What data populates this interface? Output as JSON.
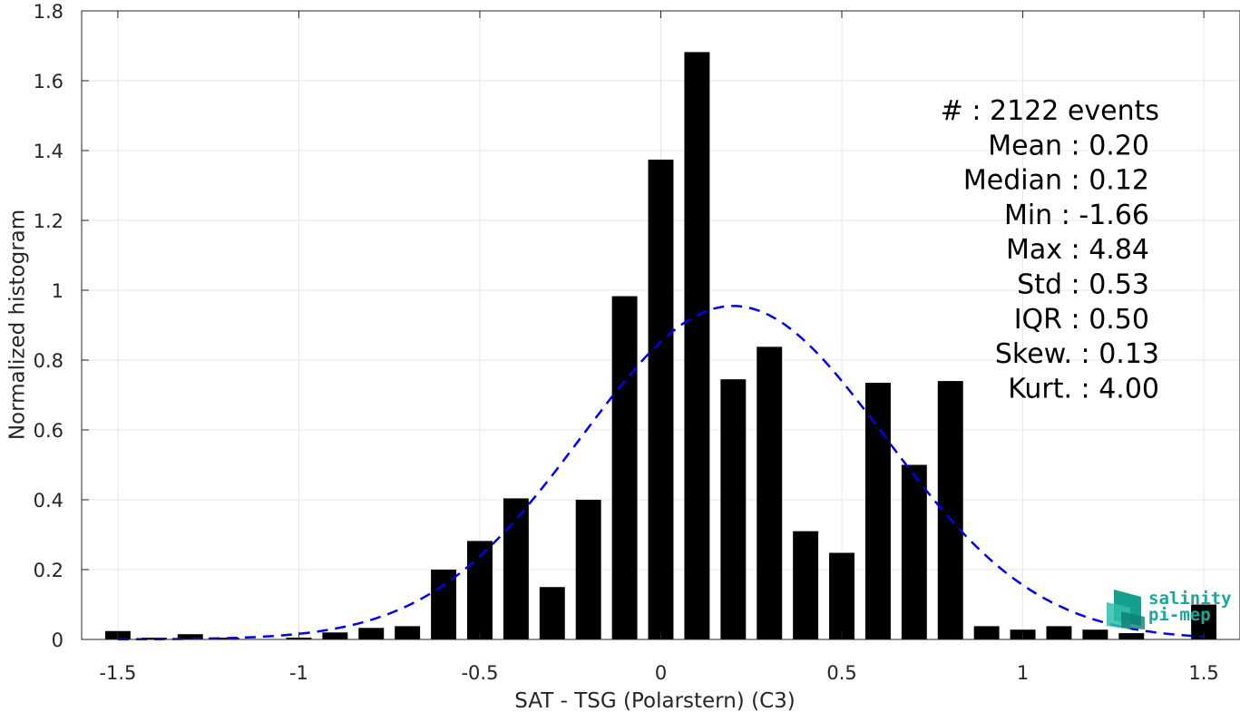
{
  "chart_data": {
    "type": "bar",
    "xlabel": "SAT - TSG (Polarstern) (C3)",
    "ylabel": "Normalized histogram",
    "xlim": [
      -1.6,
      1.6
    ],
    "ylim": [
      0,
      1.8
    ],
    "xticks": [
      -1.5,
      -1,
      -0.5,
      0,
      0.5,
      1,
      1.5
    ],
    "xtick_labels": [
      "-1.5",
      "-1",
      "-0.5",
      "0",
      "0.5",
      "1",
      "1.5"
    ],
    "yticks": [
      0,
      0.2,
      0.4,
      0.6,
      0.8,
      1,
      1.2,
      1.4,
      1.6,
      1.8
    ],
    "ytick_labels": [
      "0",
      "0.2",
      "0.4",
      "0.6",
      "0.8",
      "1",
      "1.2",
      "1.4",
      "1.6",
      "1.8"
    ],
    "grid": true,
    "bar_color": "#000000",
    "bar_width": 0.07,
    "bins": [
      -1.5,
      -1.4,
      -1.3,
      -1.2,
      -1.1,
      -1.0,
      -0.9,
      -0.8,
      -0.7,
      -0.6,
      -0.5,
      -0.4,
      -0.3,
      -0.2,
      -0.1,
      0.0,
      0.1,
      0.2,
      0.3,
      0.4,
      0.5,
      0.6,
      0.7,
      0.8,
      0.9,
      1.0,
      1.1,
      1.2,
      1.3,
      1.5
    ],
    "values": [
      0.024,
      0.005,
      0.015,
      0.005,
      0.0,
      0.005,
      0.02,
      0.033,
      0.038,
      0.2,
      0.282,
      0.404,
      0.15,
      0.4,
      0.983,
      1.374,
      1.682,
      0.745,
      0.838,
      0.31,
      0.248,
      0.735,
      0.5,
      0.74,
      0.038,
      0.028,
      0.038,
      0.028,
      0.018,
      0.1
    ],
    "fit": {
      "type": "normal",
      "mean": 0.2,
      "std": 0.42,
      "peak": 0.955,
      "color": "#0000ee",
      "style": "dashed"
    },
    "stats": [
      "#  : 2122 events",
      "Mean : 0.20",
      "Median : 0.12",
      "Min : -1.66",
      "Max : 4.84",
      "Std : 0.53",
      "IQR : 0.50",
      "Skew. : 0.13",
      "Kurt. : 4.00"
    ]
  },
  "logo": {
    "line1": "salinity",
    "line2": "pi-mep",
    "color": "#1aa89a"
  }
}
